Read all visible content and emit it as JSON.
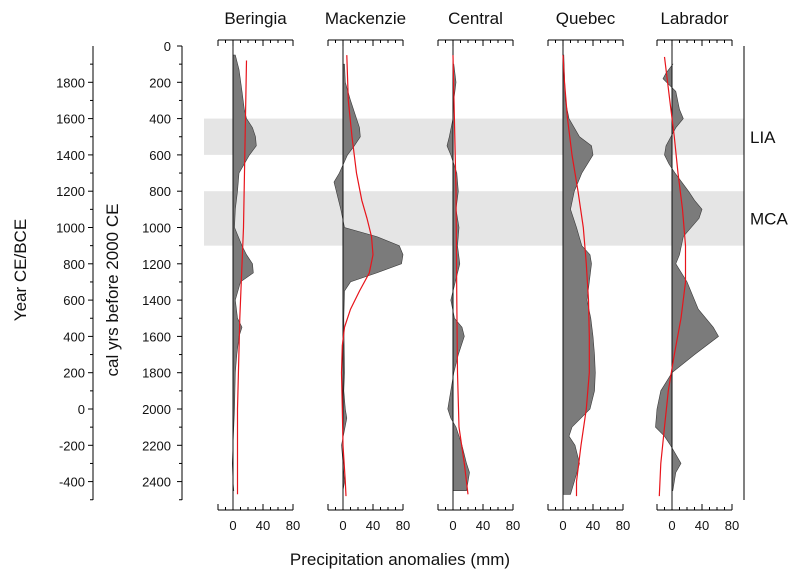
{
  "chart_data": {
    "type": "area",
    "xlabel": "Precipitation anomalies (mm)",
    "ylabel_left": "Year CE/BCE",
    "ylabel_right": "cal yrs before 2000 CE",
    "cal_ticks": [
      0,
      200,
      400,
      600,
      800,
      1000,
      1200,
      1400,
      1600,
      1800,
      2000,
      2200,
      2400
    ],
    "ce_ticks": [
      1800,
      1600,
      1400,
      1200,
      1000,
      800,
      600,
      400,
      200,
      0,
      -200,
      -400
    ],
    "x_ticks": [
      0,
      40,
      80
    ],
    "ylim": [
      0,
      2550
    ],
    "bands": [
      {
        "label": "LIA",
        "start": 400,
        "end": 600
      },
      {
        "label": "MCA",
        "start": 800,
        "end": 1100
      }
    ],
    "panels": [
      {
        "name": "Beringia",
        "xlim": [
          -20,
          80
        ],
        "profile": [
          [
            50,
            3
          ],
          [
            130,
            8
          ],
          [
            250,
            12
          ],
          [
            350,
            15
          ],
          [
            400,
            18
          ],
          [
            450,
            26
          ],
          [
            500,
            30
          ],
          [
            550,
            31
          ],
          [
            600,
            22
          ],
          [
            700,
            8
          ],
          [
            800,
            6
          ],
          [
            900,
            3
          ],
          [
            1000,
            2
          ],
          [
            1100,
            12
          ],
          [
            1150,
            18
          ],
          [
            1200,
            26
          ],
          [
            1250,
            27
          ],
          [
            1300,
            10
          ],
          [
            1400,
            3
          ],
          [
            1500,
            6
          ],
          [
            1550,
            12
          ],
          [
            1600,
            8
          ],
          [
            1700,
            5
          ],
          [
            1800,
            3
          ],
          [
            2000,
            2
          ],
          [
            2200,
            0
          ],
          [
            2300,
            -1
          ],
          [
            2400,
            0
          ],
          [
            2450,
            1
          ]
        ],
        "trend": [
          [
            80,
            18
          ],
          [
            1000,
            14
          ],
          [
            1500,
            9
          ],
          [
            2000,
            6
          ],
          [
            2400,
            6
          ],
          [
            2470,
            6
          ]
        ]
      },
      {
        "name": "Mackenzie",
        "xlim": [
          -20,
          80
        ],
        "profile": [
          [
            100,
            2
          ],
          [
            200,
            3
          ],
          [
            300,
            10
          ],
          [
            400,
            18
          ],
          [
            450,
            22
          ],
          [
            500,
            23
          ],
          [
            550,
            15
          ],
          [
            600,
            6
          ],
          [
            700,
            -5
          ],
          [
            750,
            -12
          ],
          [
            800,
            -9
          ],
          [
            900,
            -3
          ],
          [
            1000,
            2
          ],
          [
            1050,
            45
          ],
          [
            1100,
            75
          ],
          [
            1150,
            80
          ],
          [
            1200,
            78
          ],
          [
            1250,
            45
          ],
          [
            1300,
            10
          ],
          [
            1350,
            2
          ],
          [
            1500,
            1
          ],
          [
            1800,
            2
          ],
          [
            1900,
            1
          ],
          [
            2000,
            3
          ],
          [
            2050,
            5
          ],
          [
            2200,
            -2
          ],
          [
            2300,
            0
          ],
          [
            2400,
            2
          ],
          [
            2450,
            0
          ]
        ],
        "trend": [
          [
            50,
            5
          ],
          [
            300,
            7
          ],
          [
            500,
            12
          ],
          [
            700,
            18
          ],
          [
            850,
            25
          ],
          [
            950,
            32
          ],
          [
            1050,
            38
          ],
          [
            1150,
            40
          ],
          [
            1250,
            35
          ],
          [
            1350,
            22
          ],
          [
            1450,
            10
          ],
          [
            1550,
            2
          ],
          [
            1650,
            -1
          ],
          [
            1800,
            -2
          ],
          [
            2000,
            -1
          ],
          [
            2200,
            0
          ],
          [
            2400,
            3
          ],
          [
            2480,
            4
          ]
        ]
      },
      {
        "name": "Central",
        "xlim": [
          -20,
          80
        ],
        "profile": [
          [
            100,
            1
          ],
          [
            200,
            4
          ],
          [
            300,
            1
          ],
          [
            400,
            0
          ],
          [
            500,
            -5
          ],
          [
            550,
            -8
          ],
          [
            600,
            -3
          ],
          [
            700,
            5
          ],
          [
            800,
            7
          ],
          [
            900,
            4
          ],
          [
            1000,
            8
          ],
          [
            1100,
            6
          ],
          [
            1200,
            9
          ],
          [
            1300,
            3
          ],
          [
            1400,
            -3
          ],
          [
            1500,
            2
          ],
          [
            1550,
            12
          ],
          [
            1600,
            15
          ],
          [
            1700,
            7
          ],
          [
            1800,
            1
          ],
          [
            1900,
            -3
          ],
          [
            2000,
            -7
          ],
          [
            2050,
            -3
          ],
          [
            2100,
            4
          ],
          [
            2200,
            12
          ],
          [
            2300,
            18
          ],
          [
            2350,
            22
          ],
          [
            2400,
            20
          ],
          [
            2450,
            18
          ]
        ],
        "trend": [
          [
            50,
            0
          ],
          [
            800,
            4
          ],
          [
            1400,
            5
          ],
          [
            1800,
            6
          ],
          [
            2100,
            8
          ],
          [
            2300,
            15
          ],
          [
            2470,
            20
          ]
        ]
      },
      {
        "name": "Quebec",
        "xlim": [
          -20,
          80
        ],
        "profile": [
          [
            50,
            1
          ],
          [
            300,
            3
          ],
          [
            400,
            8
          ],
          [
            500,
            22
          ],
          [
            550,
            38
          ],
          [
            600,
            40
          ],
          [
            700,
            25
          ],
          [
            800,
            15
          ],
          [
            900,
            10
          ],
          [
            1000,
            18
          ],
          [
            1100,
            25
          ],
          [
            1150,
            36
          ],
          [
            1200,
            38
          ],
          [
            1300,
            35
          ],
          [
            1400,
            32
          ],
          [
            1500,
            37
          ],
          [
            1600,
            40
          ],
          [
            1700,
            42
          ],
          [
            1800,
            43
          ],
          [
            1900,
            42
          ],
          [
            2000,
            36
          ],
          [
            2050,
            24
          ],
          [
            2100,
            12
          ],
          [
            2150,
            8
          ],
          [
            2200,
            16
          ],
          [
            2300,
            22
          ],
          [
            2400,
            15
          ],
          [
            2470,
            10
          ]
        ],
        "trend": [
          [
            50,
            0
          ],
          [
            200,
            2
          ],
          [
            400,
            6
          ],
          [
            600,
            12
          ],
          [
            800,
            20
          ],
          [
            1000,
            27
          ],
          [
            1200,
            31
          ],
          [
            1400,
            34
          ],
          [
            1600,
            35
          ],
          [
            1800,
            35
          ],
          [
            2000,
            31
          ],
          [
            2200,
            24
          ],
          [
            2400,
            18
          ],
          [
            2480,
            18
          ]
        ]
      },
      {
        "name": "Labrador",
        "xlim": [
          -20,
          80
        ],
        "profile": [
          [
            100,
            1
          ],
          [
            150,
            -8
          ],
          [
            180,
            -12
          ],
          [
            250,
            5
          ],
          [
            350,
            10
          ],
          [
            400,
            15
          ],
          [
            450,
            5
          ],
          [
            550,
            -8
          ],
          [
            600,
            -10
          ],
          [
            650,
            -4
          ],
          [
            700,
            4
          ],
          [
            800,
            22
          ],
          [
            850,
            30
          ],
          [
            900,
            40
          ],
          [
            950,
            36
          ],
          [
            1050,
            15
          ],
          [
            1150,
            10
          ],
          [
            1200,
            5
          ],
          [
            1300,
            20
          ],
          [
            1450,
            35
          ],
          [
            1550,
            55
          ],
          [
            1600,
            62
          ],
          [
            1700,
            30
          ],
          [
            1800,
            0
          ],
          [
            1900,
            -15
          ],
          [
            2000,
            -20
          ],
          [
            2100,
            -22
          ],
          [
            2150,
            -10
          ],
          [
            2200,
            -2
          ],
          [
            2300,
            12
          ],
          [
            2350,
            5
          ],
          [
            2450,
            1
          ]
        ],
        "trend": [
          [
            60,
            -10
          ],
          [
            300,
            -3
          ],
          [
            500,
            3
          ],
          [
            700,
            8
          ],
          [
            900,
            14
          ],
          [
            1100,
            18
          ],
          [
            1300,
            18
          ],
          [
            1500,
            12
          ],
          [
            1700,
            3
          ],
          [
            1900,
            -5
          ],
          [
            2100,
            -10
          ],
          [
            2300,
            -15
          ],
          [
            2480,
            -17
          ]
        ]
      }
    ]
  }
}
